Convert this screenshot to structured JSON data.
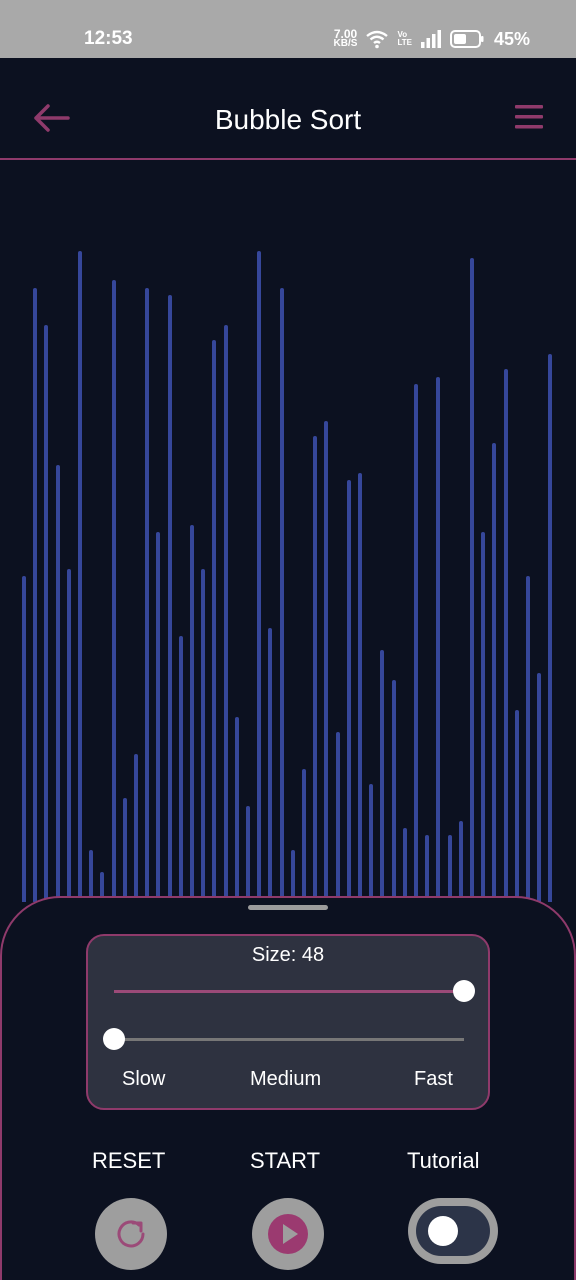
{
  "status_bar": {
    "time": "12:53",
    "net_speed_value": "7.00",
    "net_speed_unit": "KB/S",
    "lte_top": "Vo",
    "lte_bottom": "LTE",
    "battery": "45%"
  },
  "app_bar": {
    "title": "Bubble Sort",
    "back_icon": "arrow-left-icon",
    "menu_icon": "hamburger-menu-icon",
    "accent": "#8f3a6b"
  },
  "bars": {
    "color": "#36479a",
    "values": [
      0.44,
      0.83,
      0.78,
      0.59,
      0.45,
      0.88,
      0.07,
      0.04,
      0.84,
      0.14,
      0.2,
      0.83,
      0.5,
      0.82,
      0.36,
      0.51,
      0.45,
      0.76,
      0.78,
      0.25,
      0.13,
      0.88,
      0.37,
      0.83,
      0.07,
      0.18,
      0.63,
      0.65,
      0.23,
      0.57,
      0.58,
      0.16,
      0.34,
      0.3,
      0.1,
      0.7,
      0.09,
      0.71,
      0.09,
      0.11,
      0.87,
      0.5,
      0.62,
      0.72,
      0.26,
      0.44,
      0.31,
      0.74
    ]
  },
  "controls": {
    "size_label": "Size: 48",
    "size_fraction": 1.0,
    "speed_fraction": 0.0,
    "speed_labels": [
      "Slow",
      "Medium",
      "Fast"
    ],
    "reset_label": "RESET",
    "start_label": "START",
    "tutorial_label": "Tutorial",
    "tutorial_enabled": false,
    "reset_icon": "refresh-icon",
    "start_icon": "play-circle-icon"
  }
}
